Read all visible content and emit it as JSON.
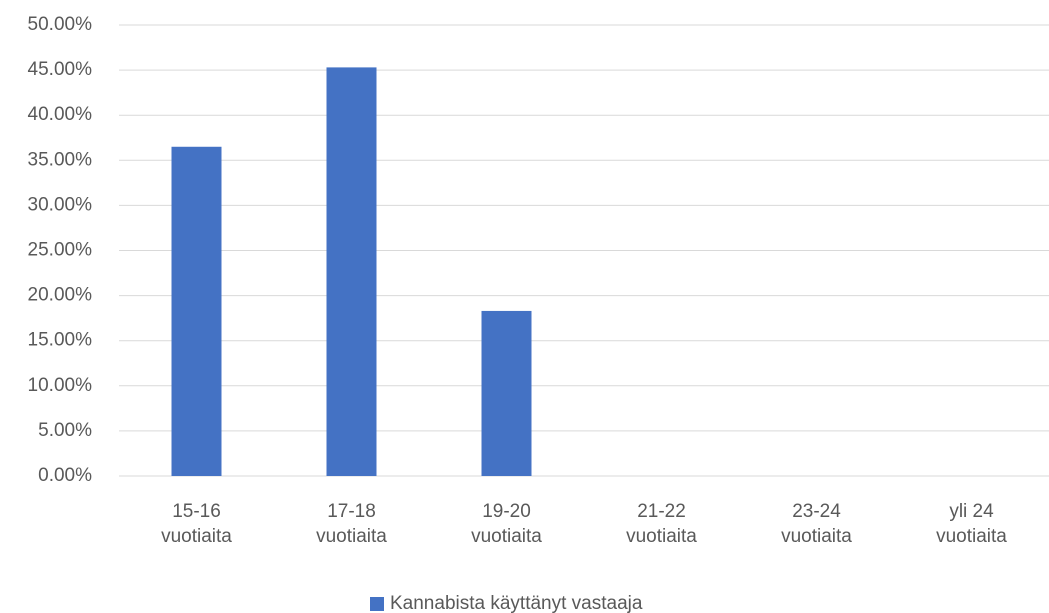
{
  "chart_data": {
    "type": "bar",
    "categories": [
      "15-16 vuotiaita",
      "17-18 vuotiaita",
      "19-20 vuotiaita",
      "21-22 vuotiaita",
      "23-24 vuotiaita",
      "yli 24 vuotiaita"
    ],
    "series": [
      {
        "name": "Kannabista käyttänyt vastaaja",
        "color": "#4472c4",
        "values": [
          36.5,
          45.3,
          18.3,
          0,
          0,
          0
        ]
      }
    ],
    "ylim": [
      0,
      50
    ],
    "yticks": [
      {
        "value": 0,
        "label": "0.00%"
      },
      {
        "value": 5,
        "label": "5.00%"
      },
      {
        "value": 10,
        "label": "10.00%"
      },
      {
        "value": 15,
        "label": "15.00%"
      },
      {
        "value": 20,
        "label": "20.00%"
      },
      {
        "value": 25,
        "label": "25.00%"
      },
      {
        "value": 30,
        "label": "30.00%"
      },
      {
        "value": 35,
        "label": "35.00%"
      },
      {
        "value": 40,
        "label": "40.00%"
      },
      {
        "value": 45,
        "label": "45.00%"
      },
      {
        "value": 50,
        "label": "50.00%"
      }
    ],
    "grid": true,
    "legend": "bottom"
  }
}
